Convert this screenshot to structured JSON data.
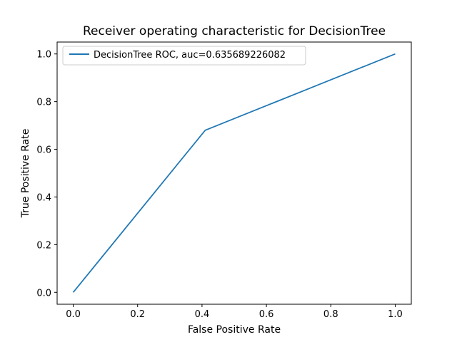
{
  "chart_data": {
    "type": "line",
    "title": "Receiver operating characteristic for DecisionTree",
    "xlabel": "False Positive Rate",
    "ylabel": "True Positive Rate",
    "xlim": [
      -0.05,
      1.05
    ],
    "ylim": [
      -0.05,
      1.05
    ],
    "x_ticks": [
      "0.0",
      "0.2",
      "0.4",
      "0.6",
      "0.8",
      "1.0"
    ],
    "y_ticks": [
      "0.0",
      "0.2",
      "0.4",
      "0.6",
      "0.8",
      "1.0"
    ],
    "grid": false,
    "legend_position": "upper-left",
    "series": [
      {
        "name": "DecisionTree ROC, auc=0.635689226082",
        "color": "#1f77b4",
        "x": [
          0.0,
          0.41,
          1.0
        ],
        "y": [
          0.0,
          0.68,
          1.0
        ]
      }
    ]
  }
}
